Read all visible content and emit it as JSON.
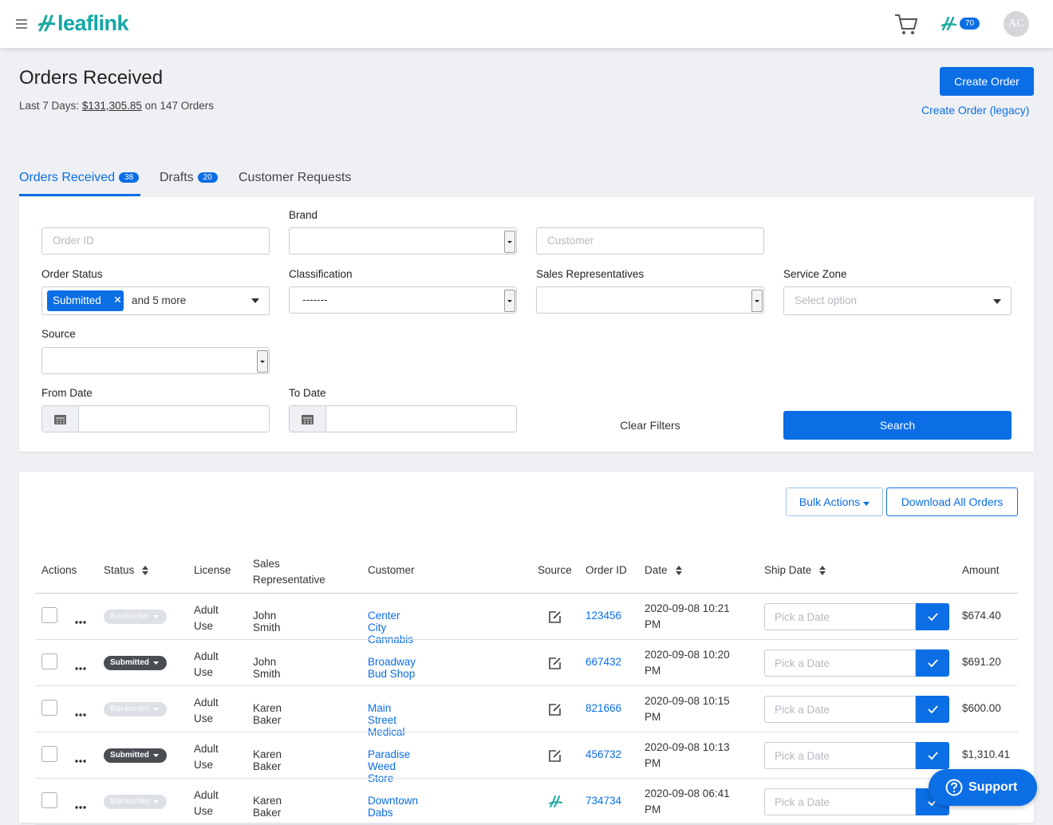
{
  "header": {
    "logo": "leaflink",
    "badge": 70,
    "avatar": "AC"
  },
  "page": {
    "title": "Orders Received",
    "summary_prefix": "Last 7 Days:",
    "summary_amount": "$131,305.85",
    "summary_on": "on",
    "summary_count": 147,
    "summary_suffix": "Orders",
    "create_order": "Create Order",
    "create_legacy": "Create Order (legacy)"
  },
  "tabs": [
    {
      "label": "Orders Received",
      "count": 38
    },
    {
      "label": "Drafts",
      "count": 20
    },
    {
      "label": "Customer Requests"
    }
  ],
  "filters": {
    "order_id": "Order ID",
    "brand": "Brand",
    "customer": "Customer",
    "order_status": "Order Status",
    "status_chip": "Submitted",
    "status_more": "and 5 more",
    "classification": "Classification",
    "classification_value": "-------",
    "sales_reps": "Sales Representatives",
    "service_zone": "Service Zone",
    "service_zone_placeholder": "Select option",
    "source": "Source",
    "from_date": "From Date",
    "to_date": "To Date",
    "clear": "Clear Filters",
    "search": "Search"
  },
  "toolbar": {
    "bulk_actions": "Bulk Actions",
    "download": "Download All Orders"
  },
  "table": {
    "columns": [
      "Actions",
      "Status",
      "License",
      "Sales Representative",
      "Customer",
      "Source",
      "Order ID",
      "Date",
      "Ship Date",
      "Amount"
    ],
    "ship_placeholder": "Pick a Date",
    "rows": [
      {
        "status": "Backorder",
        "status_color": "#dde0e4",
        "license": "Adult Use",
        "rep": "John Smith",
        "customer": "Center City Cannabis",
        "source_icon": "edit",
        "order_id": "123456",
        "date": "2020-09-08 10:21 PM",
        "amount": "$674.40"
      },
      {
        "status": "Submitted",
        "status_color": "#4a4d52",
        "license": "Adult Use",
        "rep": "John Smith",
        "customer": "Broadway Bud Shop",
        "source_icon": "edit",
        "order_id": "667432",
        "date": "2020-09-08 10:20 PM",
        "amount": "$691.20"
      },
      {
        "status": "Backorder",
        "status_color": "#dde0e4",
        "license": "Adult Use",
        "rep": "Karen Baker",
        "customer": "Main Street Medical",
        "source_icon": "edit",
        "order_id": "821666",
        "date": "2020-09-08 10:15 PM",
        "amount": "$600.00"
      },
      {
        "status": "Submitted",
        "status_color": "#4a4d52",
        "license": "Adult Use",
        "rep": "Karen Baker",
        "customer": "Paradise Weed Store",
        "source_icon": "edit",
        "order_id": "456732",
        "date": "2020-09-08 10:13 PM",
        "amount": "$1,310.41"
      },
      {
        "status": "Backorder",
        "status_color": "#dde0e4",
        "license": "Adult Use",
        "rep": "Karen Baker",
        "customer": "Downtown Dabs",
        "source_icon": "leaflink",
        "order_id": "734734",
        "date": "2020-09-08 06:41 PM",
        "amount": ""
      }
    ]
  },
  "support": "Support"
}
